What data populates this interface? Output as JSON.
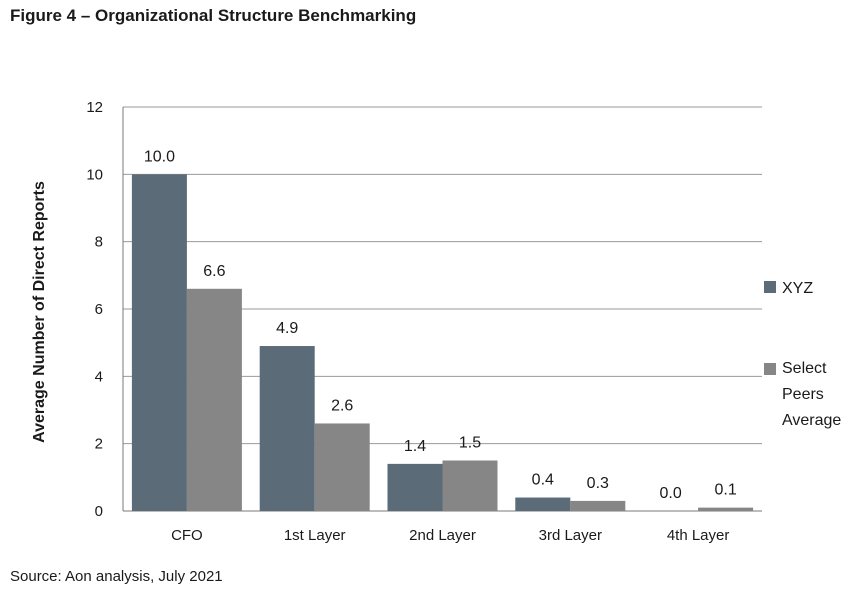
{
  "figure_title": "Figure 4 – Organizational Structure Benchmarking",
  "source": "Source: Aon analysis, July 2021",
  "colors": {
    "xyz": "#5b6b77",
    "peers": "#868686",
    "grid": "#9a9a9a"
  },
  "chart_data": {
    "type": "bar",
    "ylabel": "Average Number of Direct Reports",
    "xlabel": "",
    "ylim": [
      0,
      12
    ],
    "yticks": [
      0,
      2,
      4,
      6,
      8,
      10,
      12
    ],
    "grid": true,
    "legend_position": "right",
    "categories": [
      "CFO",
      "1st Layer",
      "2nd Layer",
      "3rd Layer",
      "4th Layer"
    ],
    "series": [
      {
        "name": "XYZ",
        "values": [
          10.0,
          4.9,
          1.4,
          0.4,
          0.0
        ],
        "labels": [
          "10.0",
          "4.9",
          "1.4",
          "0.4",
          "0.0"
        ]
      },
      {
        "name": "Select Peers Average",
        "values": [
          6.6,
          2.6,
          1.5,
          0.3,
          0.1
        ],
        "labels": [
          "6.6",
          "2.6",
          "1.5",
          "0.3",
          "0.1"
        ]
      }
    ]
  }
}
